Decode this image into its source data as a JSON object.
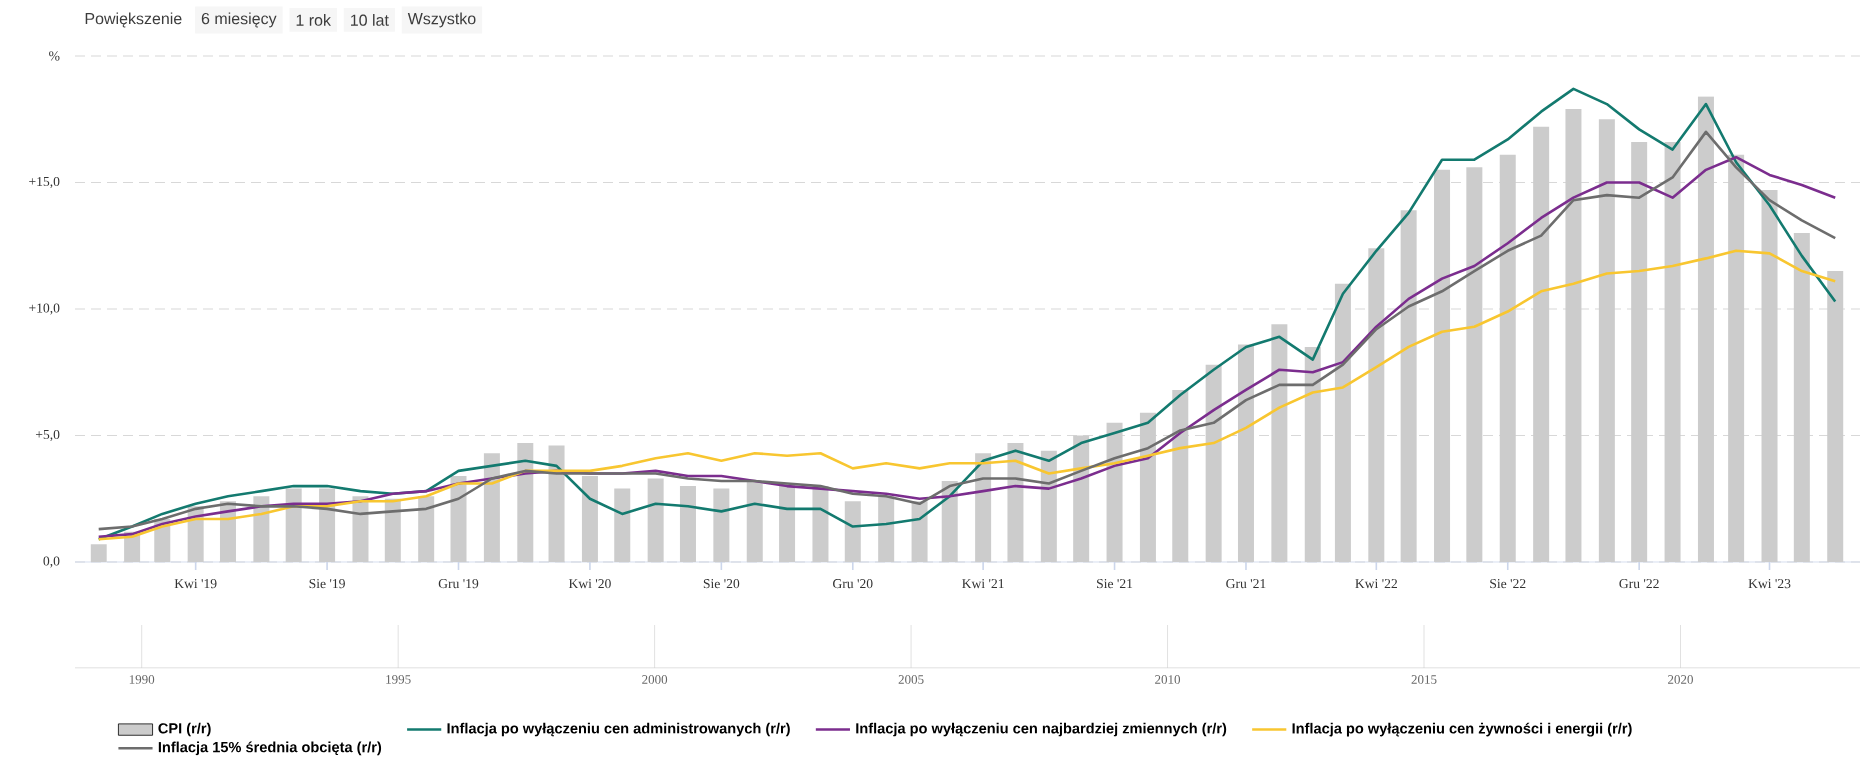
{
  "chart_data": {
    "type": "bar",
    "annotations": [
      "Powiększenie",
      "6 miesięcy",
      "1 rok",
      "10 lat",
      "Wszystko"
    ],
    "x": [
      "2019-01",
      "2019-02",
      "2019-03",
      "2019-04",
      "2019-05",
      "2019-06",
      "2019-07",
      "2019-08",
      "2019-09",
      "2019-10",
      "2019-11",
      "2019-12",
      "2020-01",
      "2020-02",
      "2020-03",
      "2020-04",
      "2020-05",
      "2020-06",
      "2020-07",
      "2020-08",
      "2020-09",
      "2020-10",
      "2020-11",
      "2020-12",
      "2021-01",
      "2021-02",
      "2021-03",
      "2021-04",
      "2021-05",
      "2021-06",
      "2021-07",
      "2021-08",
      "2021-09",
      "2021-10",
      "2021-11",
      "2021-12",
      "2022-01",
      "2022-02",
      "2022-03",
      "2022-04",
      "2022-05",
      "2022-06",
      "2022-07",
      "2022-08",
      "2022-09",
      "2022-10",
      "2022-11",
      "2022-12",
      "2023-01",
      "2023-02",
      "2023-03",
      "2023-04",
      "2023-05",
      "2023-06"
    ],
    "series": [
      {
        "name": "CPI (r/r)",
        "color": "#cccccc",
        "values": [
          0.7,
          1.2,
          1.7,
          2.2,
          2.4,
          2.6,
          2.9,
          2.9,
          2.6,
          2.5,
          2.6,
          3.4,
          4.3,
          4.7,
          4.6,
          3.4,
          2.9,
          3.3,
          3.0,
          2.9,
          3.2,
          3.1,
          3.0,
          2.4,
          2.6,
          2.4,
          3.2,
          4.3,
          4.7,
          4.4,
          5.0,
          5.5,
          5.9,
          6.8,
          7.8,
          8.6,
          9.4,
          8.5,
          11.0,
          12.4,
          13.9,
          15.5,
          15.6,
          16.1,
          17.2,
          17.9,
          17.5,
          16.6,
          16.6,
          18.4,
          16.1,
          14.7,
          13.0,
          11.5
        ]
      },
      {
        "name": "Inflacja po wyłączeniu cen administrowanych (r/r)",
        "type": "line",
        "color": "#137a6f",
        "values": [
          0.9,
          1.4,
          1.9,
          2.3,
          2.6,
          2.8,
          3.0,
          3.0,
          2.8,
          2.7,
          2.8,
          3.6,
          3.8,
          4.0,
          3.8,
          2.5,
          1.9,
          2.3,
          2.2,
          2.0,
          2.3,
          2.1,
          2.1,
          1.4,
          1.5,
          1.7,
          2.6,
          4.0,
          4.4,
          4.0,
          4.7,
          5.1,
          5.5,
          6.6,
          7.6,
          8.5,
          8.9,
          8.0,
          10.6,
          12.3,
          13.8,
          15.9,
          15.9,
          16.7,
          17.8,
          18.7,
          18.1,
          17.1,
          16.3,
          18.1,
          15.8,
          14.1,
          12.1,
          10.3
        ]
      },
      {
        "name": "Inflacja po wyłączeniu cen najbardziej zmiennych (r/r)",
        "type": "line",
        "color": "#7b2d8e",
        "values": [
          1.0,
          1.1,
          1.5,
          1.8,
          2.0,
          2.2,
          2.3,
          2.3,
          2.4,
          2.7,
          2.8,
          3.1,
          3.3,
          3.5,
          3.6,
          3.5,
          3.5,
          3.6,
          3.4,
          3.4,
          3.2,
          3.0,
          2.9,
          2.8,
          2.7,
          2.5,
          2.6,
          2.8,
          3.0,
          2.9,
          3.3,
          3.8,
          4.1,
          5.1,
          6.0,
          6.8,
          7.6,
          7.5,
          7.9,
          9.3,
          10.4,
          11.2,
          11.7,
          12.6,
          13.6,
          14.4,
          15.0,
          15.0,
          14.4,
          15.5,
          16.0,
          15.3,
          14.9,
          14.4
        ]
      },
      {
        "name": "Inflacja po wyłączeniu cen żywności i energii (r/r)",
        "type": "line",
        "color": "#f8c630",
        "values": [
          0.9,
          1.0,
          1.4,
          1.7,
          1.7,
          1.9,
          2.2,
          2.2,
          2.4,
          2.4,
          2.6,
          3.1,
          3.1,
          3.6,
          3.6,
          3.6,
          3.8,
          4.1,
          4.3,
          4.0,
          4.3,
          4.2,
          4.3,
          3.7,
          3.9,
          3.7,
          3.9,
          3.9,
          4.0,
          3.5,
          3.7,
          3.9,
          4.2,
          4.5,
          4.7,
          5.3,
          6.1,
          6.7,
          6.9,
          7.7,
          8.5,
          9.1,
          9.3,
          9.9,
          10.7,
          11.0,
          11.4,
          11.5,
          11.7,
          12.0,
          12.3,
          12.2,
          11.5,
          11.1
        ]
      },
      {
        "name": "Inflacja 15% średnia obcięta (r/r)",
        "type": "line",
        "color": "#6d6d6d",
        "values": [
          1.3,
          1.4,
          1.7,
          2.1,
          2.3,
          2.2,
          2.2,
          2.1,
          1.9,
          2.0,
          2.1,
          2.5,
          3.3,
          3.6,
          3.5,
          3.5,
          3.5,
          3.5,
          3.3,
          3.2,
          3.2,
          3.1,
          3.0,
          2.7,
          2.6,
          2.3,
          3.0,
          3.3,
          3.3,
          3.1,
          3.6,
          4.1,
          4.5,
          5.2,
          5.5,
          6.4,
          7.0,
          7.0,
          7.8,
          9.2,
          10.1,
          10.7,
          11.5,
          12.3,
          12.9,
          14.3,
          14.5,
          14.4,
          15.2,
          17.0,
          15.6,
          14.3,
          13.5,
          12.8
        ]
      }
    ],
    "xlim": [
      "2018-12-10",
      "2023-06-24"
    ],
    "xticks": [
      {
        "value": "2019-04",
        "label": "Kwi '19"
      },
      {
        "value": "2019-08",
        "label": "Sie '19"
      },
      {
        "value": "2019-12",
        "label": "Gru '19"
      },
      {
        "value": "2020-04",
        "label": "Kwi '20"
      },
      {
        "value": "2020-08",
        "label": "Sie '20"
      },
      {
        "value": "2020-12",
        "label": "Gru '20"
      },
      {
        "value": "2021-04",
        "label": "Kwi '21"
      },
      {
        "value": "2021-08",
        "label": "Sie '21"
      },
      {
        "value": "2021-12",
        "label": "Gru '21"
      },
      {
        "value": "2022-04",
        "label": "Kwi '22"
      },
      {
        "value": "2022-08",
        "label": "Sie '22"
      },
      {
        "value": "2022-12",
        "label": "Gru '22"
      },
      {
        "value": "2023-04",
        "label": "Kwi '23"
      }
    ],
    "ylim": [
      0,
      20
    ],
    "yticks": [
      {
        "value": 0,
        "label": "0,0"
      },
      {
        "value": 5,
        "label": "+5,0"
      },
      {
        "value": 10,
        "label": "+10,0"
      },
      {
        "value": 15,
        "label": "+15,0"
      },
      {
        "value": 20,
        "label": "%"
      }
    ],
    "grid": "y",
    "legend": "bottom",
    "x2lim": [
      1988.7,
      2023.5
    ],
    "x2ticks": [
      1990,
      1995,
      2000,
      2005,
      2010,
      2015,
      2020
    ]
  }
}
